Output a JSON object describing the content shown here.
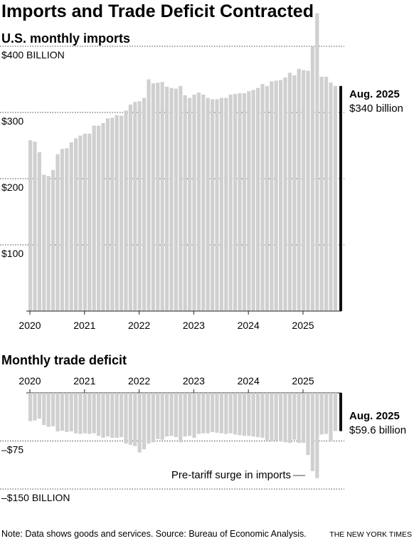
{
  "headline": "Imports and Trade Deficit Contracted",
  "note": "Note: Data shows goods and services. Source: Bureau of Economic Analysis.",
  "credit": "THE NEW YORK TIMES",
  "colors": {
    "bar": "#d0d0d0",
    "highlight": "#111111",
    "grid": "#444444"
  },
  "chart_data": [
    {
      "type": "bar",
      "title": "U.S. monthly imports",
      "ylim": [
        0,
        460
      ],
      "y_tick_labels": [
        {
          "value": 400,
          "label": "$400 BILLION"
        },
        {
          "value": 300,
          "label": "$300"
        },
        {
          "value": 200,
          "label": "$200"
        },
        {
          "value": 100,
          "label": "$100"
        }
      ],
      "x_tick_labels": [
        "2020",
        "2021",
        "2022",
        "2023",
        "2024",
        "2025"
      ],
      "x_start": "2020-01",
      "annotation": {
        "title": "Aug. 2025",
        "value_text": "$340 billion"
      },
      "values": [
        258,
        256,
        240,
        206,
        204,
        213,
        237,
        245,
        246,
        255,
        261,
        265,
        268,
        268,
        280,
        280,
        284,
        291,
        292,
        296,
        295,
        303,
        312,
        316,
        317,
        322,
        350,
        344,
        345,
        346,
        339,
        337,
        336,
        340,
        326,
        322,
        327,
        330,
        327,
        322,
        320,
        320,
        322,
        322,
        327,
        328,
        329,
        329,
        332,
        334,
        337,
        343,
        340,
        347,
        348,
        349,
        353,
        360,
        356,
        366,
        364,
        363,
        400,
        450,
        354,
        354,
        345,
        340
      ]
    },
    {
      "type": "bar",
      "title": "Monthly trade deficit",
      "ylim": [
        -150,
        0
      ],
      "y_tick_labels": [
        {
          "value": -75,
          "label": "–$75"
        },
        {
          "value": -150,
          "label": "–$150 BILLION"
        }
      ],
      "x_tick_labels": [
        "2020",
        "2021",
        "2022",
        "2023",
        "2024",
        "2025"
      ],
      "x_start": "2020-01",
      "annotation": {
        "title": "Aug. 2025",
        "value_text": "$59.6 billion"
      },
      "callout": "Pre-tariff surge in imports",
      "values": [
        -44,
        -43,
        -40,
        -50,
        -53,
        -52,
        -60,
        -59,
        -61,
        -60,
        -63,
        -64,
        -63,
        -64,
        -63,
        -67,
        -70,
        -68,
        -70,
        -70,
        -69,
        -79,
        -81,
        -83,
        -93,
        -88,
        -79,
        -77,
        -72,
        -73,
        -68,
        -67,
        -69,
        -77,
        -68,
        -67,
        -70,
        -64,
        -63,
        -63,
        -61,
        -62,
        -63,
        -64,
        -63,
        -65,
        -66,
        -67,
        -67,
        -68,
        -69,
        -70,
        -74,
        -76,
        -74,
        -76,
        -77,
        -78,
        -73,
        -78,
        -78,
        -97,
        -122,
        -133,
        -65,
        -64,
        -76,
        -59.6
      ]
    }
  ]
}
